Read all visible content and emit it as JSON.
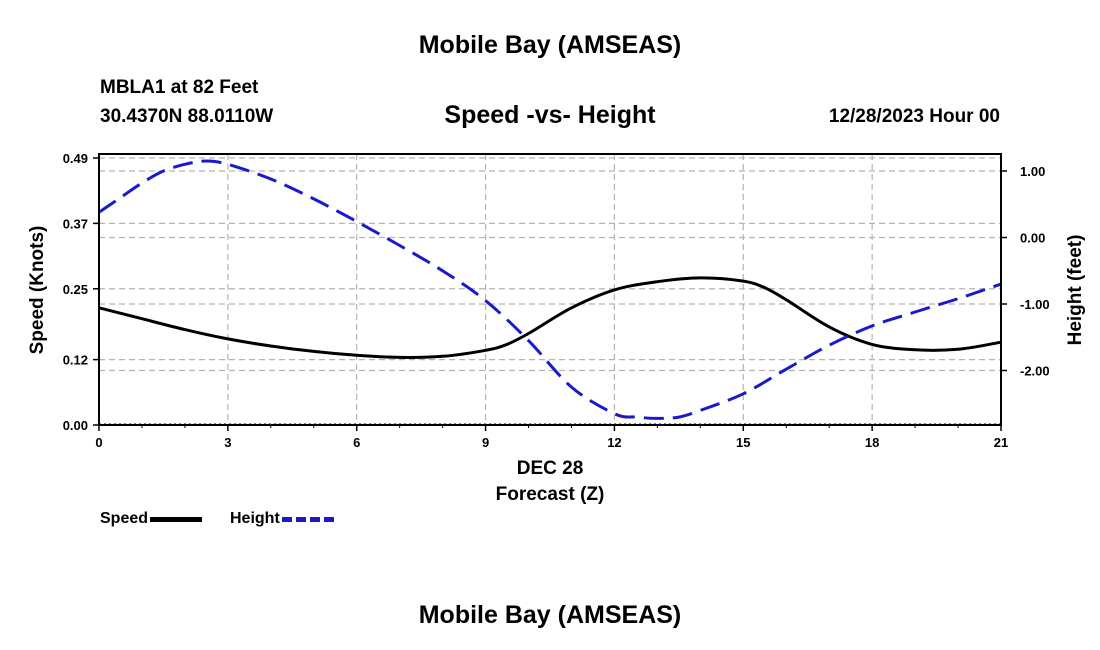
{
  "header": {
    "title": "Mobile Bay (AMSEAS)",
    "station": "MBLA1 at 82 Feet",
    "coords": "30.4370N  88.0110W",
    "chart_title": "Speed -vs- Height",
    "datetime": "12/28/2023 Hour 00"
  },
  "footer": {
    "title": "Mobile Bay (AMSEAS)"
  },
  "legend": {
    "speed_label": "Speed",
    "height_label": "Height"
  },
  "colors": {
    "speed": "#000000",
    "height": "#1a1acc",
    "grid": "#b4b4b4"
  },
  "chart_data": {
    "type": "line",
    "title": "Speed -vs- Height",
    "xlabel": "Forecast (Z)",
    "x_sublabel": "DEC 28",
    "ylabel": "Speed (Knots)",
    "y2label": "Height (feet)",
    "xlim": [
      0,
      21
    ],
    "ylim": [
      0,
      0.49
    ],
    "y2lim": [
      -2.75,
      1.25
    ],
    "x_ticks": [
      0,
      3,
      6,
      9,
      12,
      15,
      18,
      21
    ],
    "y_ticks": [
      "0.00",
      "0.12",
      "0.25",
      "0.37",
      "0.49"
    ],
    "y2_ticks": [
      "1.00",
      "0.00",
      "-1.00",
      "-2.00"
    ],
    "series": [
      {
        "name": "Speed",
        "axis": "left",
        "style": "solid",
        "x": [
          0,
          1,
          2,
          3,
          4,
          5,
          6,
          7,
          8,
          9,
          9.5,
          10,
          11,
          12,
          13,
          14,
          15,
          15.5,
          16,
          17,
          18,
          19,
          20,
          21
        ],
        "values": [
          0.215,
          0.195,
          0.175,
          0.158,
          0.145,
          0.135,
          0.128,
          0.124,
          0.126,
          0.137,
          0.148,
          0.168,
          0.215,
          0.248,
          0.263,
          0.27,
          0.264,
          0.252,
          0.23,
          0.18,
          0.148,
          0.138,
          0.139,
          0.152
        ]
      },
      {
        "name": "Height",
        "axis": "right",
        "style": "dashed",
        "x": [
          0,
          0.5,
          1,
          1.5,
          2,
          2.5,
          3,
          4,
          5,
          6,
          7,
          8,
          9,
          10,
          11,
          12,
          12.5,
          13,
          13.5,
          14,
          15,
          16,
          17,
          18,
          19,
          20,
          21
        ],
        "values": [
          0.38,
          0.6,
          0.82,
          1.0,
          1.1,
          1.15,
          1.1,
          0.88,
          0.58,
          0.24,
          -0.12,
          -0.5,
          -0.95,
          -1.55,
          -2.25,
          -2.65,
          -2.7,
          -2.72,
          -2.7,
          -2.6,
          -2.35,
          -1.98,
          -1.62,
          -1.33,
          -1.12,
          -0.92,
          -0.7
        ]
      }
    ]
  }
}
